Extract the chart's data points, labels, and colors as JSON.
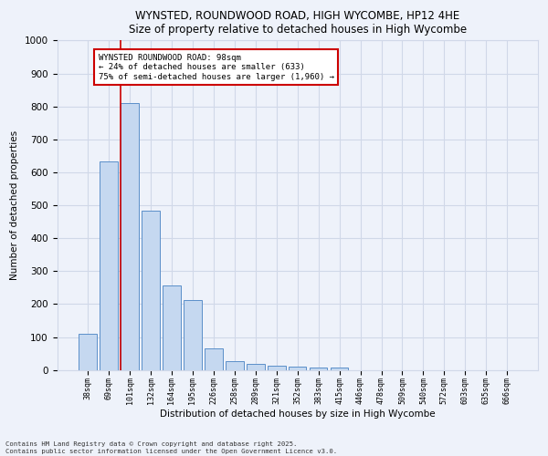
{
  "title1": "WYNSTED, ROUNDWOOD ROAD, HIGH WYCOMBE, HP12 4HE",
  "title2": "Size of property relative to detached houses in High Wycombe",
  "xlabel": "Distribution of detached houses by size in High Wycombe",
  "ylabel": "Number of detached properties",
  "footnote1": "Contains HM Land Registry data © Crown copyright and database right 2025.",
  "footnote2": "Contains public sector information licensed under the Open Government Licence v3.0.",
  "categories": [
    "38sqm",
    "69sqm",
    "101sqm",
    "132sqm",
    "164sqm",
    "195sqm",
    "226sqm",
    "258sqm",
    "289sqm",
    "321sqm",
    "352sqm",
    "383sqm",
    "415sqm",
    "446sqm",
    "478sqm",
    "509sqm",
    "540sqm",
    "572sqm",
    "603sqm",
    "635sqm",
    "666sqm"
  ],
  "values": [
    110,
    633,
    810,
    483,
    256,
    212,
    65,
    27,
    18,
    12,
    10,
    8,
    8,
    0,
    0,
    0,
    0,
    0,
    0,
    0,
    0
  ],
  "bar_color": "#c5d8f0",
  "bar_edge_color": "#5b8fc9",
  "highlight_bar_index": 2,
  "property_label": "WYNSTED ROUNDWOOD ROAD: 98sqm",
  "annotation_line1": "← 24% of detached houses are smaller (633)",
  "annotation_line2": "75% of semi-detached houses are larger (1,960) →",
  "vline_color": "#cc0000",
  "annotation_box_color": "#cc0000",
  "ylim": [
    0,
    1000
  ],
  "yticks": [
    0,
    100,
    200,
    300,
    400,
    500,
    600,
    700,
    800,
    900,
    1000
  ],
  "grid_color": "#d0d8e8",
  "bg_color": "#eef2fa",
  "plot_bg_color": "#eef2fa"
}
